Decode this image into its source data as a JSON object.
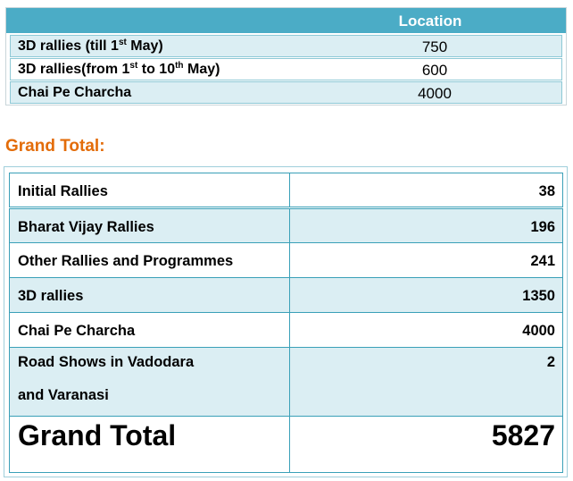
{
  "table1": {
    "header": "Location",
    "rows": [
      {
        "label_a": "3D rallies (till 1",
        "sup_a": "st",
        "label_b": " May)",
        "label_c": "",
        "sup_c": "",
        "label_d": "",
        "value": "750"
      },
      {
        "label_a": "3D rallies(from 1",
        "sup_a": "st",
        "label_b": " to 10",
        "sup_c": "th",
        "label_d": " May)",
        "value": "600"
      },
      {
        "label_a": "Chai Pe Charcha",
        "sup_a": "",
        "label_b": "",
        "sup_c": "",
        "label_d": "",
        "value": "4000"
      }
    ]
  },
  "heading": "Grand Total:",
  "table2": {
    "rows": [
      {
        "label": "Initial Rallies",
        "value": "38"
      },
      {
        "label": "Bharat Vijay Rallies",
        "value": "196"
      },
      {
        "label": "Other Rallies and Programmes",
        "value": "241"
      },
      {
        "label": "3D rallies",
        "value": "1350"
      },
      {
        "label": "Chai Pe Charcha",
        "value": "4000"
      },
      {
        "label_line1": "Road Shows in Vadodara",
        "label_line2": "and Varanasi",
        "value": "2"
      },
      {
        "label": "Grand Total",
        "value": "5827"
      }
    ]
  }
}
